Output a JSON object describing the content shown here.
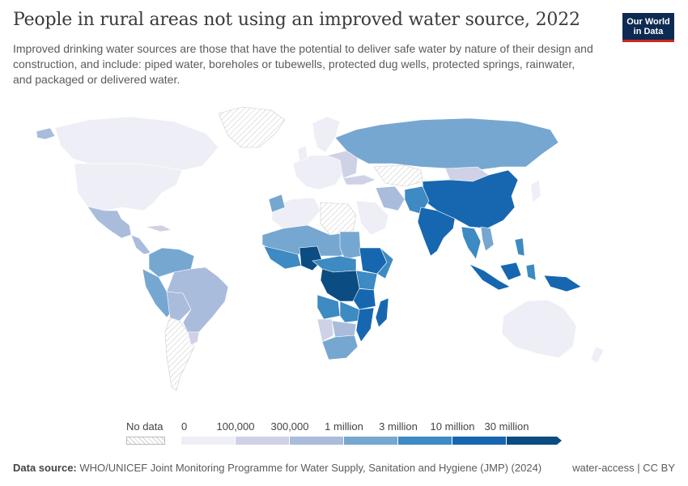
{
  "title": "People in rural areas not using an improved water source, 2022",
  "subtitle": "Improved drinking water sources are those that have the potential to deliver safe water by nature of their design and construction, and include: piped water, boreholes or tubewells, protected dug wells, protected springs, rainwater, and packaged or delivered water.",
  "logo": {
    "line1": "Our World",
    "line2": "in Data"
  },
  "legend": {
    "no_data_label": "No data",
    "tick_labels": [
      "0",
      "100,000",
      "300,000",
      "1 million",
      "3 million",
      "10 million",
      "30 million"
    ],
    "bin_colors": [
      "#eeeef6",
      "#cfd2e6",
      "#a9bcdc",
      "#76a7d0",
      "#3e8ac2",
      "#1767b0",
      "#0b4c82"
    ],
    "no_data_color": "hatched"
  },
  "footer": {
    "source_label": "Data source:",
    "source_text": "WHO/UNICEF Joint Monitoring Programme for Water Supply, Sanitation and Hygiene (JMP) (2024)",
    "license": "water-access | CC BY"
  }
}
